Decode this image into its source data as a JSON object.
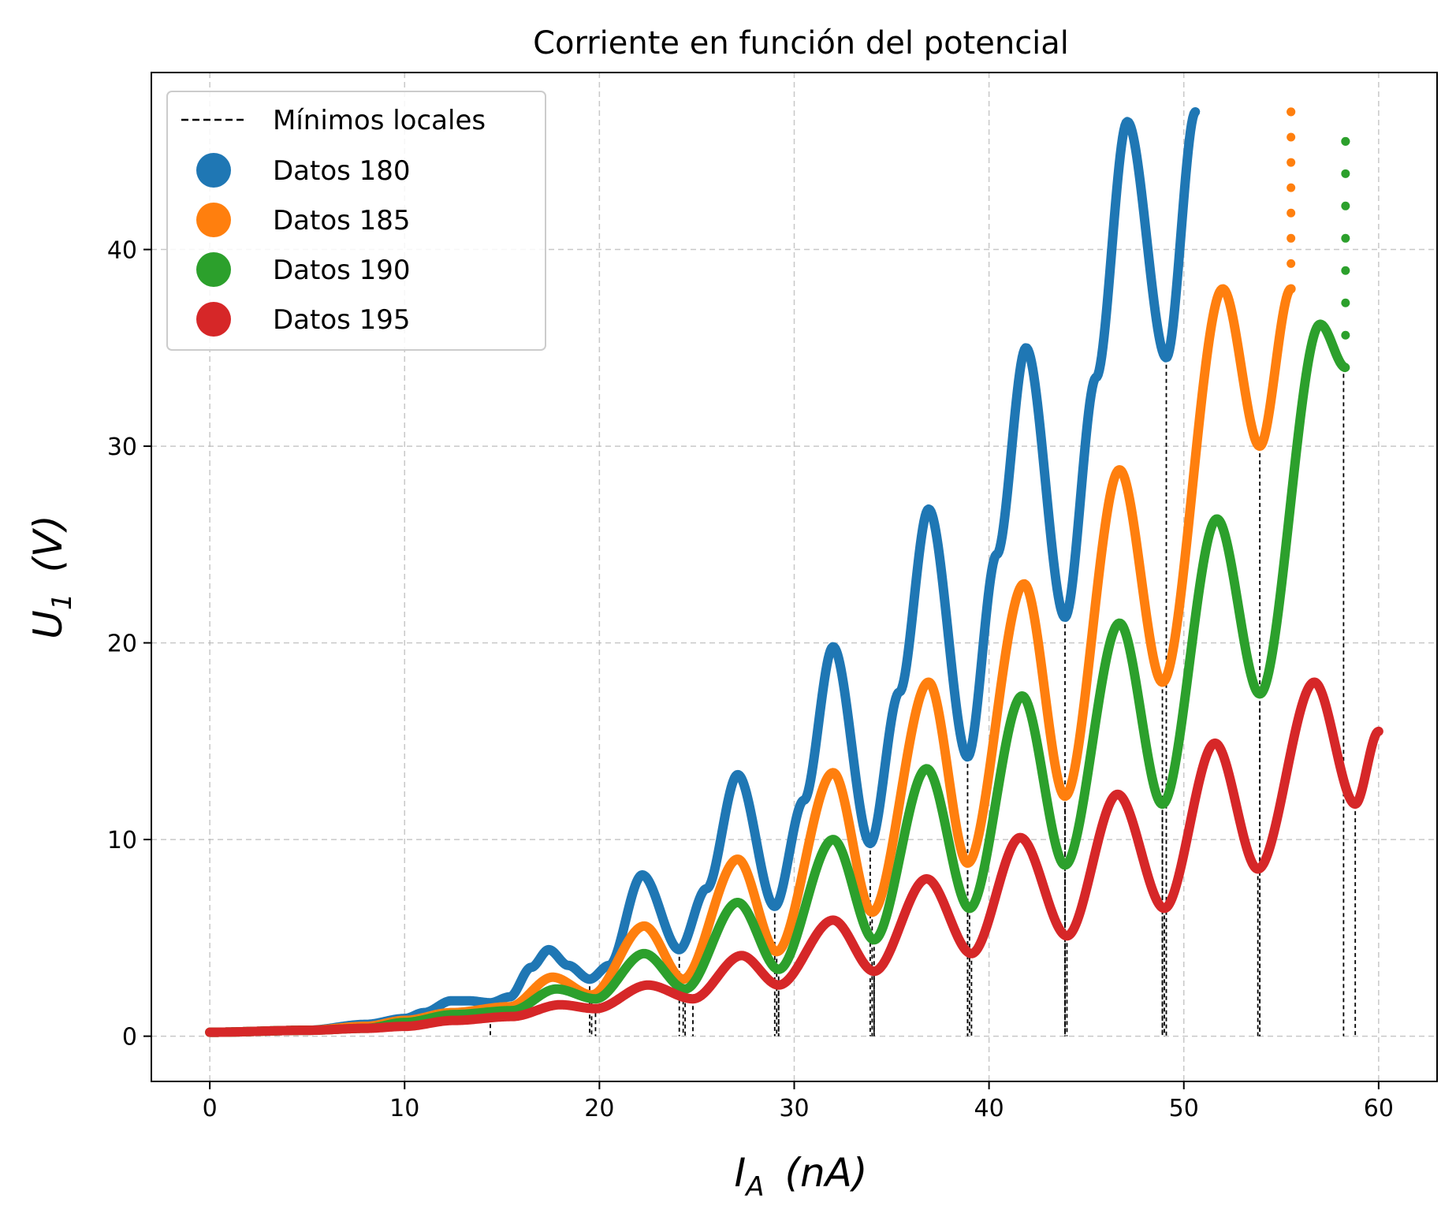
{
  "chart_data": {
    "type": "scatter",
    "title": "Corriente en función del potencial",
    "xlabel": {
      "main": "I",
      "sub": "A",
      "unit": "(nA)"
    },
    "ylabel": {
      "main": "U",
      "sub": "1",
      "unit": "(V)"
    },
    "xlim": [
      -3,
      63
    ],
    "ylim": [
      -2.3,
      49
    ],
    "x_ticks": [
      0,
      10,
      20,
      30,
      40,
      50,
      60
    ],
    "y_ticks": [
      0,
      10,
      20,
      30,
      40
    ],
    "x_tick_labels": [
      "0",
      "10",
      "20",
      "30",
      "40",
      "50",
      "60"
    ],
    "y_tick_labels": [
      "0",
      "10",
      "20",
      "30",
      "40"
    ],
    "grid": true,
    "legend_position": "top-left",
    "minima_label": "Mínimos locales",
    "minima_color": "#000000",
    "series": [
      {
        "name": "Datos 180",
        "color": "#1f77b4",
        "x_max": 50.6,
        "tail_x": 50.6,
        "tail_y": 47.0,
        "points": [
          [
            0,
            0.2
          ],
          [
            5,
            0.3
          ],
          [
            8,
            0.6
          ],
          [
            10,
            0.9
          ],
          [
            11,
            1.2
          ],
          [
            12.4,
            1.8
          ],
          [
            13.3,
            1.8
          ],
          [
            14.4,
            1.7
          ],
          [
            15.4,
            2.0
          ],
          [
            16.5,
            3.5
          ],
          [
            17.4,
            4.4
          ],
          [
            18.4,
            3.6
          ],
          [
            19.5,
            2.9
          ],
          [
            20.5,
            3.6
          ],
          [
            22.2,
            8.2
          ],
          [
            24.1,
            4.4
          ],
          [
            25.5,
            7.5
          ],
          [
            27.1,
            13.3
          ],
          [
            29.0,
            6.6
          ],
          [
            30.5,
            12.0
          ],
          [
            32.0,
            19.8
          ],
          [
            33.9,
            9.8
          ],
          [
            35.4,
            17.5
          ],
          [
            36.9,
            26.8
          ],
          [
            38.9,
            14.2
          ],
          [
            40.4,
            24.5
          ],
          [
            41.9,
            35.0
          ],
          [
            43.9,
            21.3
          ],
          [
            45.5,
            33.5
          ],
          [
            47.1,
            46.5
          ],
          [
            49.1,
            34.5
          ],
          [
            50.6,
            47.0
          ]
        ],
        "minima_x": [
          14.4,
          19.5,
          24.1,
          29.0,
          33.9,
          38.9,
          43.9,
          49.1
        ]
      },
      {
        "name": "Datos 185",
        "color": "#ff7f0e",
        "x_max": 55.5,
        "tail_x": 55.5,
        "tail_y": 47.0,
        "points": [
          [
            0,
            0.2
          ],
          [
            5,
            0.3
          ],
          [
            8,
            0.5
          ],
          [
            10,
            0.8
          ],
          [
            12.4,
            1.2
          ],
          [
            15.4,
            1.5
          ],
          [
            17.6,
            3.0
          ],
          [
            19.6,
            2.1
          ],
          [
            22.3,
            5.6
          ],
          [
            24.3,
            2.9
          ],
          [
            27.1,
            9.0
          ],
          [
            29.1,
            4.3
          ],
          [
            32.0,
            13.4
          ],
          [
            34.0,
            6.3
          ],
          [
            36.9,
            18.0
          ],
          [
            38.9,
            8.8
          ],
          [
            41.8,
            23.0
          ],
          [
            43.9,
            12.2
          ],
          [
            46.7,
            28.8
          ],
          [
            48.9,
            18.0
          ],
          [
            52.0,
            38.0
          ],
          [
            53.9,
            30.0
          ],
          [
            55.5,
            38.0
          ]
        ],
        "minima_x": [
          19.6,
          24.3,
          29.1,
          34.0,
          38.9,
          43.9,
          48.9,
          53.9
        ]
      },
      {
        "name": "Datos 190",
        "color": "#2ca02c",
        "x_max": 58.3,
        "tail_x": 58.3,
        "tail_y": 45.5,
        "points": [
          [
            0,
            0.2
          ],
          [
            5,
            0.3
          ],
          [
            8,
            0.4
          ],
          [
            10,
            0.7
          ],
          [
            12.5,
            1.1
          ],
          [
            15.5,
            1.3
          ],
          [
            17.8,
            2.4
          ],
          [
            19.8,
            1.9
          ],
          [
            22.3,
            4.2
          ],
          [
            24.4,
            2.4
          ],
          [
            27.1,
            6.8
          ],
          [
            29.2,
            3.4
          ],
          [
            32.0,
            10.0
          ],
          [
            34.1,
            4.9
          ],
          [
            36.8,
            13.6
          ],
          [
            39.0,
            6.5
          ],
          [
            41.7,
            17.3
          ],
          [
            43.9,
            8.7
          ],
          [
            46.7,
            21.0
          ],
          [
            48.9,
            11.8
          ],
          [
            51.7,
            26.3
          ],
          [
            53.9,
            17.4
          ],
          [
            57.0,
            36.2
          ],
          [
            58.3,
            34.0
          ]
        ],
        "minima_x": [
          19.8,
          24.4,
          29.2,
          34.1,
          39.0,
          43.9,
          48.9,
          53.9,
          58.2
        ]
      },
      {
        "name": "Datos 195",
        "color": "#d62728",
        "x_max": 60.0,
        "tail_x": null,
        "tail_y": null,
        "points": [
          [
            0,
            0.2
          ],
          [
            5,
            0.3
          ],
          [
            8,
            0.4
          ],
          [
            10,
            0.5
          ],
          [
            12.5,
            0.8
          ],
          [
            15.5,
            1.0
          ],
          [
            18,
            1.6
          ],
          [
            19.8,
            1.4
          ],
          [
            22.5,
            2.6
          ],
          [
            24.8,
            1.9
          ],
          [
            27.3,
            4.1
          ],
          [
            29.2,
            2.6
          ],
          [
            32.0,
            5.9
          ],
          [
            34.1,
            3.3
          ],
          [
            36.8,
            8.0
          ],
          [
            39.1,
            4.2
          ],
          [
            41.6,
            10.1
          ],
          [
            44.0,
            5.1
          ],
          [
            46.6,
            12.3
          ],
          [
            49.0,
            6.5
          ],
          [
            51.6,
            14.9
          ],
          [
            53.8,
            8.5
          ],
          [
            56.7,
            18.0
          ],
          [
            58.8,
            11.8
          ],
          [
            60.0,
            15.5
          ]
        ],
        "minima_x": [
          24.8,
          29.2,
          34.1,
          39.1,
          44.0,
          49.0,
          53.8,
          58.8
        ]
      }
    ]
  }
}
